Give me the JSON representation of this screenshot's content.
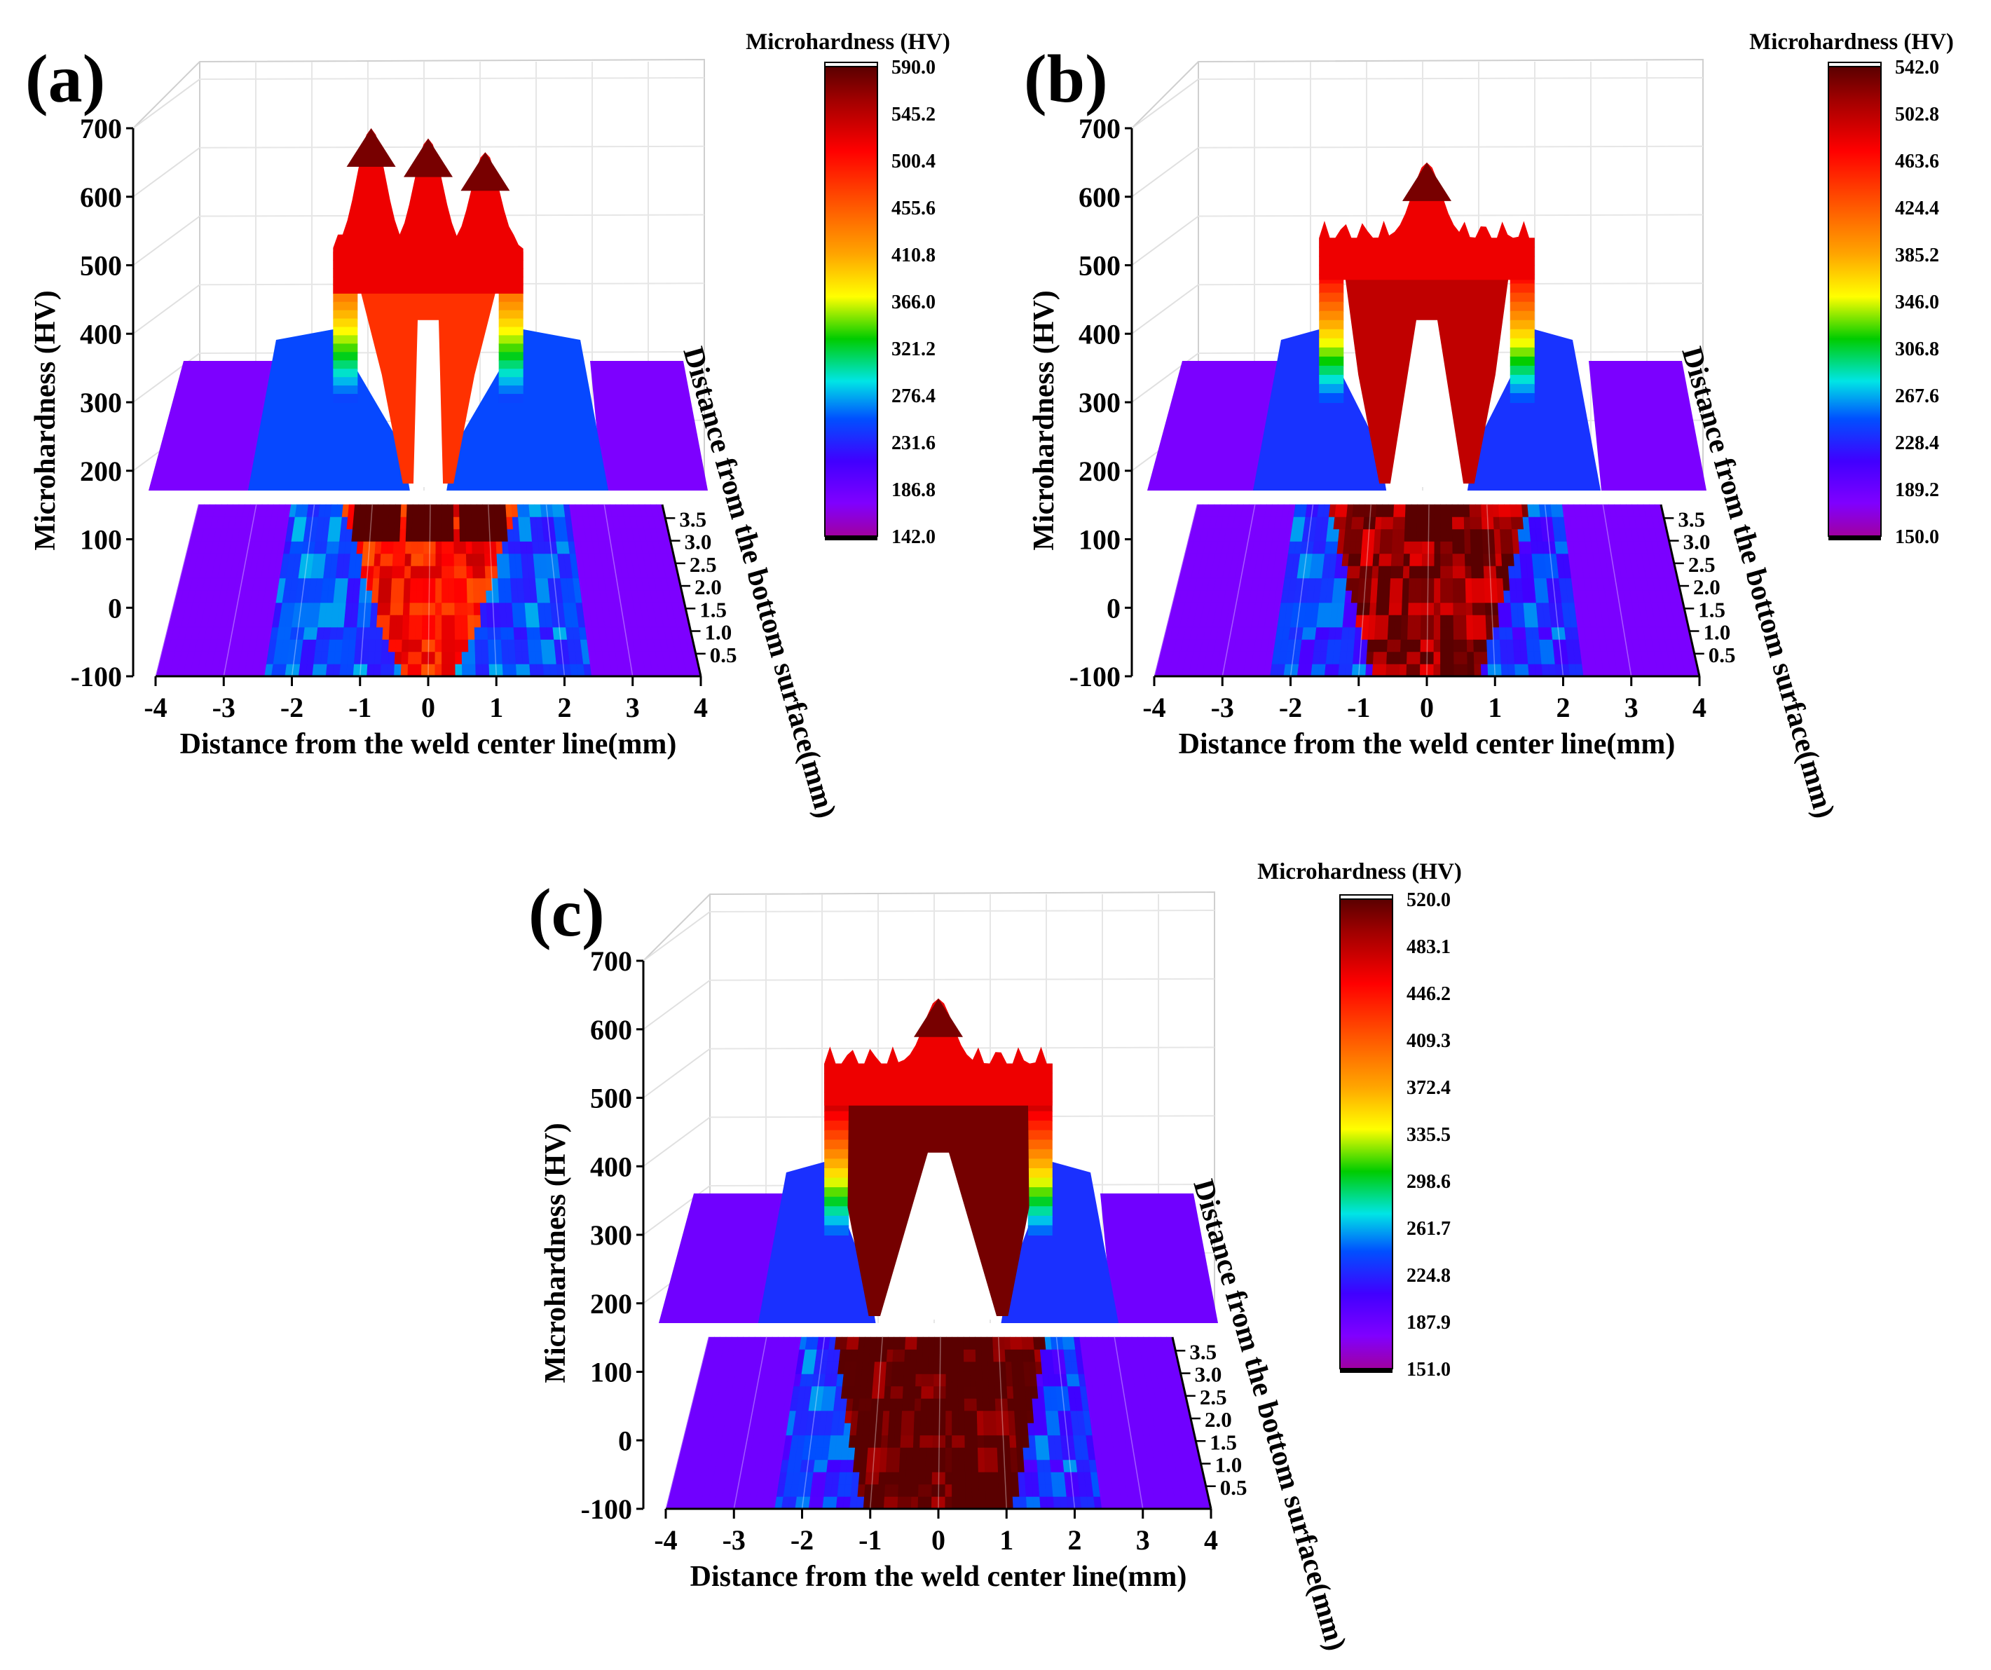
{
  "figure": {
    "panels": [
      {
        "label": "(a)",
        "colorbar_title": "Microhardness (HV)",
        "colorbar_ticks": [
          "590.0",
          "545.2",
          "500.4",
          "455.6",
          "410.8",
          "366.0",
          "321.2",
          "276.4",
          "231.6",
          "186.8",
          "142.0"
        ],
        "z_axis_label": "Microhardness (HV)",
        "x_axis_label": "Distance from the weld center line(mm)",
        "y_axis_label": "Distance from the bottom surface(mm)"
      },
      {
        "label": "(b)",
        "colorbar_title": "Microhardness (HV)",
        "colorbar_ticks": [
          "542.0",
          "502.8",
          "463.6",
          "424.4",
          "385.2",
          "346.0",
          "306.8",
          "267.6",
          "228.4",
          "189.2",
          "150.0"
        ],
        "z_axis_label": "Microhardness (HV)",
        "x_axis_label": "Distance from the weld center line(mm)",
        "y_axis_label": "Distance from the bottom surface(mm)"
      },
      {
        "label": "(c)",
        "colorbar_title": "Microhardness (HV)",
        "colorbar_ticks": [
          "520.0",
          "483.1",
          "446.2",
          "409.3",
          "372.4",
          "335.5",
          "298.6",
          "261.7",
          "224.8",
          "187.9",
          "151.0"
        ],
        "z_axis_label": "Microhardness (HV)",
        "x_axis_label": "Distance from the weld center line(mm)",
        "y_axis_label": "Distance from the bottom surface(mm)"
      }
    ]
  },
  "chart_data": [
    {
      "type": "surface3d",
      "title": "(a)",
      "xlabel": "Distance from the weld center line(mm)",
      "ylabel": "Distance from the bottom surface(mm)",
      "zlabel": "Microhardness (HV)",
      "x_ticks": [
        -4,
        -3,
        -2,
        -1,
        0,
        1,
        2,
        3,
        4
      ],
      "x_tick_labels": [
        "-4",
        "-3",
        "-2",
        "-1",
        "0",
        "1",
        "2",
        "3",
        "4"
      ],
      "y_ticks": [
        0.5,
        1.0,
        1.5,
        2.0,
        2.5,
        3.0,
        3.5
      ],
      "y_tick_labels": [
        "0.5",
        "1.0",
        "1.5",
        "2.0",
        "2.5",
        "3.0",
        "3.5"
      ],
      "z_ticks": [
        -100,
        0,
        100,
        200,
        300,
        400,
        500,
        600,
        700
      ],
      "z_tick_labels": [
        "-100",
        "0",
        "100",
        "200",
        "300",
        "400",
        "500",
        "600",
        "700"
      ],
      "xlim": [
        -4,
        4
      ],
      "ylim": [
        0,
        3.8
      ],
      "zlim": [
        -100,
        700
      ],
      "colorbar_range": [
        142.0,
        590.0
      ],
      "profile": {
        "base_hv": 175,
        "haz_width_mm": 2.4,
        "haz_hv": 250,
        "fz_width_mm": 1.5,
        "fz_plateau_hv": 520,
        "peak_positions_mm": [
          -0.9,
          0.0,
          0.9
        ],
        "peak_hv": [
          700,
          685,
          665
        ],
        "fz_bottom_halfwidth_mm": 0.4
      }
    },
    {
      "type": "surface3d",
      "title": "(b)",
      "xlabel": "Distance from the weld center line(mm)",
      "ylabel": "Distance from the bottom surface(mm)",
      "zlabel": "Microhardness (HV)",
      "x_ticks": [
        -4,
        -3,
        -2,
        -1,
        0,
        1,
        2,
        3,
        4
      ],
      "x_tick_labels": [
        "-4",
        "-3",
        "-2",
        "-1",
        "0",
        "1",
        "2",
        "3",
        "4"
      ],
      "y_ticks": [
        0.5,
        1.0,
        1.5,
        2.0,
        2.5,
        3.0,
        3.5
      ],
      "y_tick_labels": [
        "0.5",
        "1.0",
        "1.5",
        "2.0",
        "2.5",
        "3.0",
        "3.5"
      ],
      "z_ticks": [
        -100,
        0,
        100,
        200,
        300,
        400,
        500,
        600,
        700
      ],
      "z_tick_labels": [
        "-100",
        "0",
        "100",
        "200",
        "300",
        "400",
        "500",
        "600",
        "700"
      ],
      "xlim": [
        -4,
        4
      ],
      "ylim": [
        0,
        3.8
      ],
      "zlim": [
        -100,
        700
      ],
      "colorbar_range": [
        150.0,
        542.0
      ],
      "profile": {
        "base_hv": 180,
        "haz_width_mm": 2.3,
        "haz_hv": 235,
        "fz_width_mm": 1.7,
        "fz_plateau_hv": 540,
        "peak_positions_mm": [
          0.0
        ],
        "peak_hv": [
          650
        ],
        "fz_bottom_halfwidth_mm": 0.75
      }
    },
    {
      "type": "surface3d",
      "title": "(c)",
      "xlabel": "Distance from the weld center line(mm)",
      "ylabel": "Distance from the bottom surface(mm)",
      "zlabel": "Microhardness (HV)",
      "x_ticks": [
        -4,
        -3,
        -2,
        -1,
        0,
        1,
        2,
        3,
        4
      ],
      "x_tick_labels": [
        "-4",
        "-3",
        "-2",
        "-1",
        "0",
        "1",
        "2",
        "3",
        "4"
      ],
      "y_ticks": [
        0.5,
        1.0,
        1.5,
        2.0,
        2.5,
        3.0,
        3.5
      ],
      "y_tick_labels": [
        "0.5",
        "1.0",
        "1.5",
        "2.0",
        "2.5",
        "3.0",
        "3.5"
      ],
      "z_ticks": [
        -100,
        0,
        100,
        200,
        300,
        400,
        500,
        600,
        700
      ],
      "z_tick_labels": [
        "-100",
        "0",
        "100",
        "200",
        "300",
        "400",
        "500",
        "600",
        "700"
      ],
      "xlim": [
        -4,
        4
      ],
      "ylim": [
        0,
        3.8
      ],
      "zlim": [
        -100,
        700
      ],
      "colorbar_range": [
        151.0,
        520.0
      ],
      "profile": {
        "base_hv": 185,
        "haz_width_mm": 2.4,
        "haz_hv": 230,
        "fz_width_mm": 1.8,
        "fz_plateau_hv": 550,
        "peak_positions_mm": [
          0.0
        ],
        "peak_hv": [
          645
        ],
        "fz_bottom_halfwidth_mm": 1.1
      }
    }
  ]
}
